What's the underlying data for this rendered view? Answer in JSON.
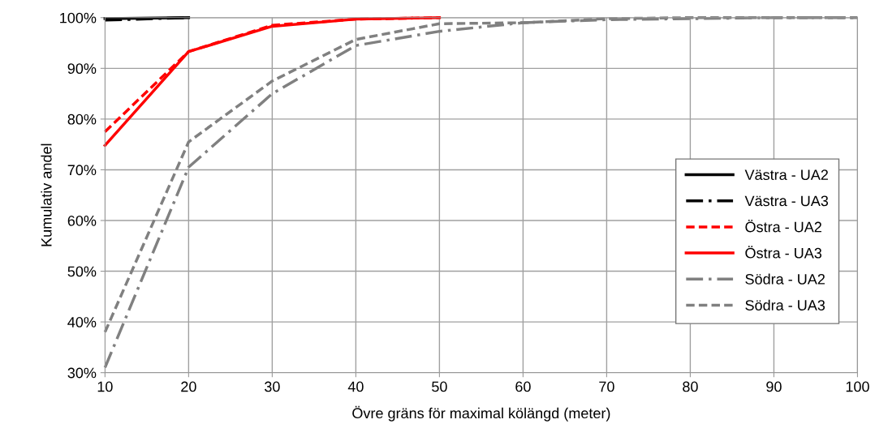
{
  "chart_data": {
    "type": "line",
    "xlabel": "Övre gräns för maximal kölängd (meter)",
    "ylabel": "Kumulativ andel",
    "x": [
      10,
      20,
      30,
      40,
      50,
      60,
      70,
      80,
      90,
      100
    ],
    "xlim": [
      10,
      100
    ],
    "xticks": [
      10,
      20,
      30,
      40,
      50,
      60,
      70,
      80,
      90,
      100
    ],
    "ylim": [
      30,
      100
    ],
    "yticks": [
      {
        "value": 30,
        "label": "30%"
      },
      {
        "value": 40,
        "label": "40%"
      },
      {
        "value": 50,
        "label": "50%"
      },
      {
        "value": 60,
        "label": "60%"
      },
      {
        "value": 70,
        "label": "70%"
      },
      {
        "value": 80,
        "label": "80%"
      },
      {
        "value": 90,
        "label": "90%"
      },
      {
        "value": 100,
        "label": "100%"
      }
    ],
    "grid": true,
    "legend": "right",
    "marker": "none",
    "series": [
      {
        "name": "Västra - UA2",
        "color": "#000000",
        "line_style": "solid",
        "values": [
          99.8,
          100,
          null,
          null,
          null,
          null,
          null,
          null,
          null,
          null
        ]
      },
      {
        "name": "Västra - UA3",
        "color": "#000000",
        "line_style": "dashdot",
        "values": [
          99.5,
          100,
          null,
          null,
          null,
          null,
          null,
          null,
          null,
          null
        ]
      },
      {
        "name": "Östra - UA2",
        "color": "#ff0000",
        "line_style": "dashed",
        "values": [
          77.5,
          93.3,
          98.5,
          99.7,
          100,
          null,
          null,
          null,
          null,
          null
        ]
      },
      {
        "name": "Östra - UA3",
        "color": "#ff0000",
        "line_style": "solid",
        "values": [
          74.8,
          93.3,
          98.3,
          99.7,
          100,
          null,
          null,
          null,
          null,
          null
        ]
      },
      {
        "name": "Södra - UA2",
        "color": "#808080",
        "line_style": "dashdot",
        "values": [
          31,
          70.5,
          85,
          94.5,
          97.3,
          99,
          99.6,
          99.8,
          100,
          100
        ]
      },
      {
        "name": "Södra - UA3",
        "color": "#808080",
        "line_style": "dashed",
        "values": [
          38,
          75.5,
          87.5,
          95.7,
          98.8,
          99,
          99.8,
          100,
          100,
          100
        ]
      }
    ]
  }
}
